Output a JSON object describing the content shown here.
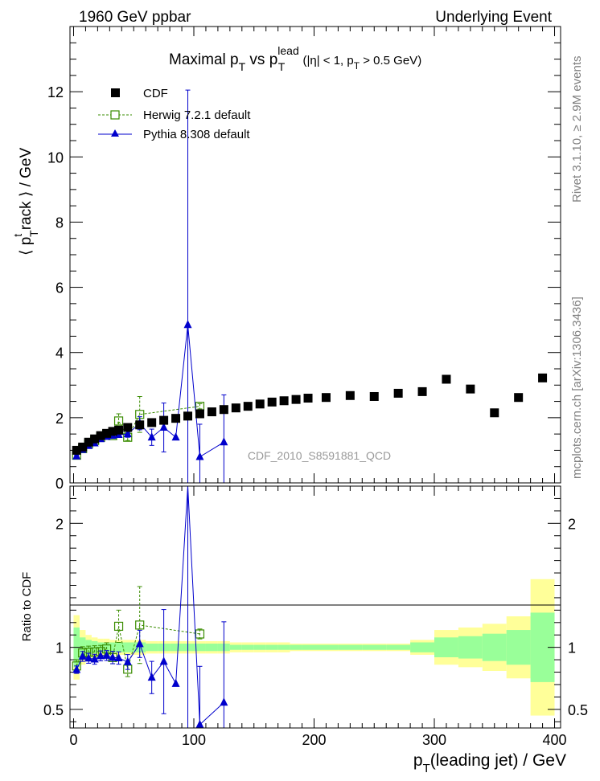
{
  "header": {
    "left": "1960 GeV ppbar",
    "right": "Underlying Event"
  },
  "side_labels": {
    "top": "Rivet 3.1.10, ≥ 2.9M events",
    "bottom": "mcplots.cern.ch [arXiv:1306.3436]"
  },
  "chart_data": [
    {
      "type": "scatter",
      "title": "Maximal p_T vs p_T^lead (|η| < 1, p_T > 0.5 GeV)",
      "xlabel": "p_T(leading jet) / GeV",
      "ylabel": "⟨ p_T^track ⟩ / GeV",
      "xlim": [
        -3,
        405
      ],
      "ylim": [
        0,
        14
      ],
      "yticks": [
        0,
        2,
        4,
        6,
        8,
        10,
        12
      ],
      "watermark": "CDF_2010_S8591881_QCD",
      "legend_position": "top-left",
      "series": [
        {
          "name": "CDF",
          "color": "#000000",
          "marker": "filled-square",
          "x": [
            2.5,
            7.5,
            12.5,
            17.5,
            22.5,
            27.5,
            32.5,
            37.5,
            45,
            55,
            65,
            75,
            85,
            95,
            105,
            115,
            125,
            135,
            145,
            155,
            165,
            175,
            185,
            195,
            210,
            230,
            250,
            270,
            290,
            310,
            330,
            350,
            370,
            390
          ],
          "y": [
            1.0,
            1.1,
            1.25,
            1.35,
            1.45,
            1.52,
            1.58,
            1.62,
            1.7,
            1.78,
            1.85,
            1.92,
            1.98,
            2.05,
            2.12,
            2.18,
            2.25,
            2.3,
            2.35,
            2.42,
            2.48,
            2.52,
            2.56,
            2.6,
            2.62,
            2.68,
            2.65,
            2.75,
            2.8,
            3.18,
            2.88,
            2.15,
            2.62,
            3.22
          ]
        },
        {
          "name": "Herwig 7.2.1 default",
          "color": "#3a8c00",
          "marker": "open-square",
          "line": "dashed",
          "x": [
            2.5,
            7.5,
            12.5,
            17.5,
            22.5,
            27.5,
            32.5,
            37.5,
            45,
            55,
            105
          ],
          "y": [
            0.85,
            1.05,
            1.2,
            1.3,
            1.4,
            1.5,
            1.45,
            1.9,
            1.4,
            2.1,
            2.35
          ],
          "yerr": [
            0.05,
            0.05,
            0.06,
            0.06,
            0.07,
            0.08,
            0.08,
            0.22,
            0.1,
            0.55,
            0.08
          ]
        },
        {
          "name": "Pythia 8.308 default",
          "color": "#0000cc",
          "marker": "filled-triangle",
          "line": "solid",
          "x": [
            2.5,
            7.5,
            12.5,
            17.5,
            22.5,
            27.5,
            32.5,
            37.5,
            45,
            55,
            65,
            75,
            85,
            95,
            105,
            125
          ],
          "y": [
            0.82,
            1.02,
            1.14,
            1.22,
            1.35,
            1.42,
            1.45,
            1.48,
            1.5,
            1.83,
            1.4,
            1.7,
            1.4,
            4.85,
            0.8,
            1.25
          ],
          "yerr": [
            0.03,
            0.04,
            0.04,
            0.05,
            0.06,
            0.06,
            0.07,
            0.08,
            0.1,
            0.2,
            0.25,
            0.75,
            0.0,
            7.2,
            1.0,
            1.45
          ]
        }
      ]
    },
    {
      "type": "scatter",
      "ylabel": "Ratio to CDF",
      "xlabel": "p_T(leading jet) / GeV",
      "xlim": [
        -3,
        405
      ],
      "ylim": [
        0.35,
        2.3
      ],
      "yticks": [
        0.5,
        1,
        2
      ],
      "xticks": [
        0,
        100,
        200,
        300,
        400
      ],
      "band_colors": {
        "inner": "#99ff99",
        "outer": "#ffff99"
      },
      "bands": {
        "x_edges": [
          0,
          5,
          10,
          15,
          20,
          25,
          30,
          35,
          40,
          50,
          60,
          70,
          80,
          90,
          100,
          110,
          120,
          130,
          140,
          150,
          160,
          170,
          180,
          190,
          200,
          220,
          240,
          260,
          280,
          300,
          320,
          340,
          360,
          380,
          400
        ],
        "inner": [
          0.16,
          0.08,
          0.06,
          0.05,
          0.04,
          0.04,
          0.04,
          0.04,
          0.04,
          0.04,
          0.03,
          0.03,
          0.03,
          0.03,
          0.03,
          0.03,
          0.03,
          0.02,
          0.02,
          0.02,
          0.02,
          0.02,
          0.02,
          0.02,
          0.02,
          0.02,
          0.02,
          0.02,
          0.04,
          0.08,
          0.09,
          0.11,
          0.14,
          0.28
        ],
        "outer": [
          0.26,
          0.14,
          0.1,
          0.08,
          0.07,
          0.07,
          0.06,
          0.06,
          0.06,
          0.06,
          0.05,
          0.05,
          0.05,
          0.05,
          0.05,
          0.05,
          0.05,
          0.04,
          0.04,
          0.04,
          0.04,
          0.04,
          0.03,
          0.03,
          0.03,
          0.03,
          0.03,
          0.03,
          0.06,
          0.14,
          0.16,
          0.19,
          0.25,
          0.55
        ]
      },
      "series": [
        {
          "name": "Herwig 7.2.1 default",
          "color": "#3a8c00",
          "marker": "open-square",
          "line": "dashed",
          "x": [
            2.5,
            7.5,
            12.5,
            17.5,
            22.5,
            27.5,
            32.5,
            37.5,
            45,
            55,
            105
          ],
          "y": [
            0.85,
            0.955,
            0.96,
            0.963,
            0.966,
            0.987,
            0.918,
            1.17,
            0.824,
            1.18,
            1.108
          ],
          "yerr": [
            0.05,
            0.05,
            0.05,
            0.05,
            0.05,
            0.05,
            0.05,
            0.13,
            0.06,
            0.31,
            0.04
          ]
        },
        {
          "name": "Pythia 8.308 default",
          "color": "#0000cc",
          "marker": "filled-triangle",
          "line": "solid",
          "x": [
            2.5,
            7.5,
            12.5,
            17.5,
            22.5,
            27.5,
            32.5,
            37.5,
            45,
            55,
            65,
            75,
            85,
            95,
            105,
            125
          ],
          "y": [
            0.82,
            0.927,
            0.912,
            0.904,
            0.931,
            0.934,
            0.918,
            0.914,
            0.882,
            1.028,
            0.757,
            0.885,
            0.707,
            2.36,
            0.377,
            0.556
          ],
          "yerr": [
            0.03,
            0.04,
            0.04,
            0.04,
            0.04,
            0.04,
            0.05,
            0.05,
            0.06,
            0.11,
            0.13,
            0.42,
            0.0,
            3.5,
            0.47,
            0.65
          ]
        }
      ]
    }
  ]
}
